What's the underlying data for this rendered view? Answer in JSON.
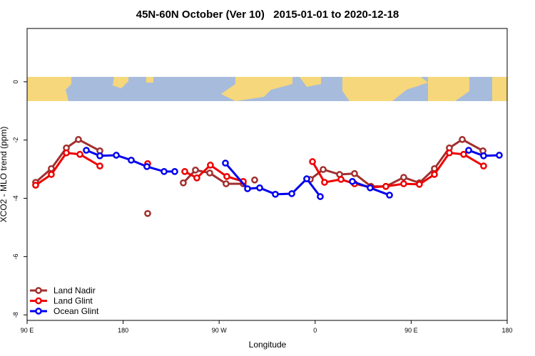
{
  "chart_data": {
    "type": "line",
    "title": "45N-60N October (Ver 10)   2015-01-01 to 2020-12-18",
    "xlabel": "Longitude",
    "ylabel": "XCO2 - MLO trend (ppm)",
    "xlim": [
      90,
      540
    ],
    "ylim": [
      -8.19,
      1.83
    ],
    "xticks": [
      {
        "value": 90,
        "label": "90 E"
      },
      180,
      {
        "value": 270,
        "label": "90 W"
      },
      {
        "value": 360,
        "label": "0"
      },
      {
        "value": 450,
        "label": "90 E"
      },
      {
        "value": 540,
        "label": "180"
      }
    ],
    "yticks": [
      -8,
      -6,
      -4,
      -2,
      0
    ],
    "legend": "bottom-left",
    "series": [
      {
        "name": "Land Nadir",
        "color": "#a0302e",
        "x": [
          98.0,
          112.7,
          126.8,
          138.1,
          158.2,
          null,
          203.0,
          null,
          236.4,
          247.8,
          261.2,
          276.5,
          292.6,
          null,
          303.3,
          null,
          355.4,
          367.5,
          382.9,
          396.9,
          412.3,
          426.3,
          443.0,
          457.7,
          471.8,
          485.8,
          497.9,
          517.3
        ],
        "values": [
          -3.45,
          -2.98,
          -2.27,
          -1.98,
          -2.37,
          null,
          -4.52,
          null,
          -3.47,
          -3.03,
          -3.13,
          -3.5,
          -3.5,
          null,
          -3.37,
          null,
          -3.35,
          -3.01,
          -3.18,
          -3.15,
          -3.59,
          -3.59,
          -3.28,
          -3.47,
          -2.98,
          -2.27,
          -1.98,
          -2.37
        ]
      },
      {
        "name": "Land Glint",
        "color": "#ee0000",
        "x": [
          98.0,
          112.7,
          126.8,
          139.5,
          158.2,
          null,
          203.0,
          null,
          237.8,
          249.1,
          261.8,
          277.2,
          292.6,
          null,
          357.5,
          368.8,
          384.2,
          396.9,
          412.3,
          426.3,
          443.0,
          457.7,
          471.8,
          485.8,
          499.2,
          517.9
        ],
        "values": [
          -3.55,
          -3.18,
          -2.44,
          -2.49,
          -2.89,
          null,
          -2.81,
          null,
          -3.08,
          -3.3,
          -2.86,
          -3.25,
          -3.42,
          null,
          -2.74,
          -3.45,
          -3.35,
          -3.5,
          -3.62,
          -3.59,
          -3.5,
          -3.52,
          -3.18,
          -2.44,
          -2.49,
          -2.89
        ]
      },
      {
        "name": "Ocean Glint",
        "color": "#0000ee",
        "x": [
          145.5,
          158.2,
          173.6,
          187.6,
          202.3,
          218.4,
          228.4,
          null,
          275.9,
          296.6,
          308.0,
          322.7,
          338.1,
          352.1,
          364.8,
          null,
          394.9,
          411.6,
          429.7,
          null,
          503.9,
          517.9,
          532.6
        ],
        "values": [
          -2.35,
          -2.54,
          -2.52,
          -2.69,
          -2.91,
          -3.08,
          -3.08,
          null,
          -2.79,
          -3.67,
          -3.64,
          -3.86,
          -3.84,
          -3.33,
          -3.94,
          null,
          -3.42,
          -3.64,
          -3.89,
          null,
          -2.35,
          -2.54,
          -2.52
        ]
      }
    ]
  }
}
